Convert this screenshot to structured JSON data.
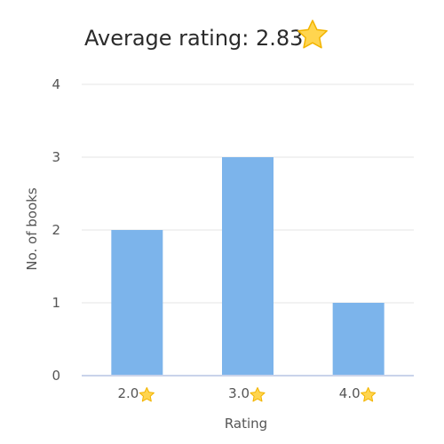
{
  "header": {
    "title": "Average rating: 2.83",
    "title_icon": "star-icon"
  },
  "chart_data": {
    "type": "bar",
    "categories": [
      "2.0",
      "3.0",
      "4.0"
    ],
    "category_icon": "star-icon",
    "values": [
      2,
      3,
      1
    ],
    "xlabel": "Rating",
    "ylabel": "No. of books",
    "ylim": [
      0,
      4
    ],
    "yticks": [
      0,
      1,
      2,
      3,
      4
    ],
    "grid": true,
    "legend": "none",
    "colors": {
      "bar": "#7cb4eb",
      "grid": "#e6e6e6",
      "axis": "#c9d3ea",
      "star_fill": "#ffd54f",
      "star_stroke": "#f2b400"
    }
  }
}
